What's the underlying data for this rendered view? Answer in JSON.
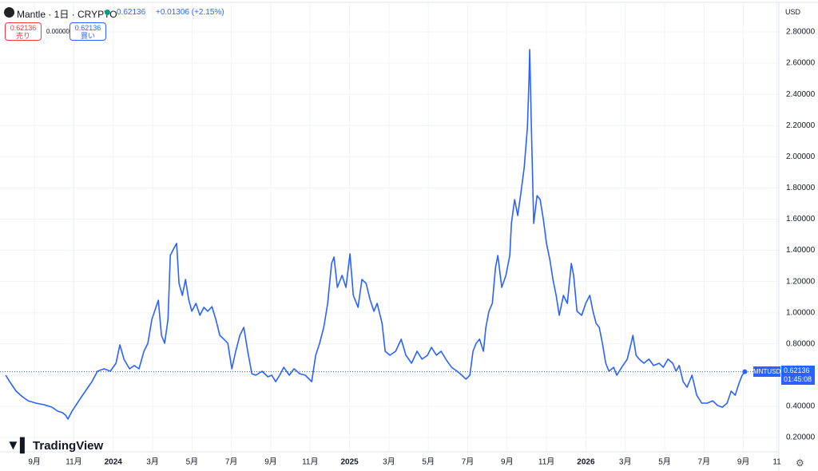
{
  "chart_data": {
    "type": "line",
    "title": "Mantle · 1日 · CRYPTO",
    "header_price": "0.62136",
    "change": "+0.01306 (+2.15%)",
    "sell_price": "0.62136",
    "sell_label": "売り",
    "spread": "0.00000",
    "buy_price": "0.62136",
    "buy_label": "買い",
    "currency": "USD",
    "watermark": "TradingView",
    "ticker": "MNTUSD",
    "last_price": "0.62136",
    "countdown": "01:45:08",
    "x": [
      -1.46,
      -1.26,
      -0.93,
      -0.61,
      -0.32,
      0.08,
      0.49,
      0.89,
      1.18,
      1.42,
      1.58,
      1.7,
      1.91,
      2.31,
      2.64,
      2.92,
      3.2,
      3.53,
      3.85,
      4.14,
      4.34,
      4.54,
      4.83,
      5.07,
      5.31,
      5.56,
      5.76,
      5.96,
      6.17,
      6.29,
      6.45,
      6.61,
      6.78,
      6.9,
      7.1,
      7.22,
      7.34,
      7.51,
      7.67,
      7.83,
      7.99,
      8.2,
      8.4,
      8.6,
      8.8,
      9.01,
      9.21,
      9.41,
      9.62,
      9.82,
      10.02,
      10.22,
      10.43,
      10.63,
      10.83,
      11.04,
      11.24,
      11.56,
      11.85,
      12.05,
      12.25,
      12.45,
      12.66,
      12.94,
      13.18,
      13.47,
      13.75,
      14.08,
      14.28,
      14.48,
      14.69,
      14.89,
      15.09,
      15.21,
      15.38,
      15.62,
      15.82,
      16.02,
      16.19,
      16.43,
      16.63,
      16.84,
      17.04,
      17.24,
      17.4,
      17.65,
      17.81,
      18.05,
      18.34,
      18.62,
      18.86,
      19.15,
      19.43,
      19.68,
      19.96,
      20.16,
      20.41,
      20.65,
      20.89,
      21.18,
      21.46,
      21.7,
      21.91,
      22.11,
      22.27,
      22.43,
      22.6,
      22.8,
      22.92,
      23.08,
      23.25,
      23.41,
      23.53,
      23.73,
      23.94,
      24.14,
      24.22,
      24.38,
      24.54,
      24.71,
      24.87,
      25.03,
      25.11,
      25.15,
      25.23,
      25.35,
      25.52,
      25.68,
      25.84,
      26.0,
      26.17,
      26.33,
      26.49,
      26.65,
      26.86,
      27.06,
      27.26,
      27.38,
      27.55,
      27.79,
      27.99,
      28.2,
      28.36,
      28.52,
      28.68,
      28.84,
      29.01,
      29.17,
      29.41,
      29.57,
      29.82,
      30.1,
      30.3,
      30.39,
      30.55,
      30.71,
      30.95,
      31.2,
      31.44,
      31.72,
      31.93,
      32.17,
      32.41,
      32.58,
      32.74,
      32.94,
      33.14,
      33.39,
      33.63,
      33.88,
      34.16,
      34.44,
      34.69,
      34.93,
      35.17,
      35.38,
      35.58,
      35.78,
      35.94,
      36.07
    ],
    "series": [
      {
        "name": "MNTUSD",
        "color": "#2962ff",
        "values": [
          0.599,
          0.558,
          0.497,
          0.461,
          0.435,
          0.42,
          0.41,
          0.394,
          0.369,
          0.359,
          0.343,
          0.318,
          0.369,
          0.446,
          0.507,
          0.558,
          0.625,
          0.64,
          0.625,
          0.676,
          0.794,
          0.702,
          0.64,
          0.661,
          0.64,
          0.753,
          0.804,
          0.957,
          1.034,
          1.08,
          0.855,
          0.804,
          0.957,
          1.367,
          1.418,
          1.444,
          1.188,
          1.111,
          1.213,
          1.085,
          1.009,
          1.06,
          0.983,
          1.034,
          1.009,
          1.039,
          0.957,
          0.855,
          0.83,
          0.804,
          0.64,
          0.753,
          0.855,
          0.906,
          0.753,
          0.609,
          0.599,
          0.625,
          0.589,
          0.599,
          0.558,
          0.599,
          0.65,
          0.599,
          0.64,
          0.609,
          0.599,
          0.558,
          0.727,
          0.804,
          0.906,
          1.06,
          1.316,
          1.357,
          1.162,
          1.239,
          1.162,
          1.377,
          1.111,
          1.034,
          1.213,
          1.188,
          1.085,
          1.009,
          1.06,
          0.932,
          0.753,
          0.727,
          0.753,
          0.83,
          0.727,
          0.676,
          0.753,
          0.702,
          0.727,
          0.778,
          0.727,
          0.753,
          0.702,
          0.65,
          0.625,
          0.599,
          0.574,
          0.599,
          0.753,
          0.804,
          0.83,
          0.753,
          0.906,
          1.009,
          1.06,
          1.29,
          1.367,
          1.162,
          1.239,
          1.367,
          1.572,
          1.725,
          1.623,
          1.776,
          1.93,
          2.186,
          2.493,
          2.687,
          2.211,
          1.572,
          1.751,
          1.725,
          1.597,
          1.444,
          1.341,
          1.213,
          1.111,
          0.983,
          1.111,
          1.06,
          1.316,
          1.239,
          1.009,
          0.983,
          1.06,
          1.111,
          1.009,
          0.932,
          0.906,
          0.804,
          0.676,
          0.625,
          0.65,
          0.599,
          0.65,
          0.702,
          0.804,
          0.855,
          0.727,
          0.702,
          0.676,
          0.702,
          0.661,
          0.676,
          0.65,
          0.702,
          0.676,
          0.625,
          0.661,
          0.558,
          0.522,
          0.599,
          0.471,
          0.42,
          0.42,
          0.435,
          0.405,
          0.394,
          0.42,
          0.497,
          0.471,
          0.548,
          0.599,
          0.62136
        ]
      }
    ],
    "xlim": [
      -1.75,
      37.8
    ],
    "ylim": [
      0.1,
      2.9
    ],
    "xticks": [
      {
        "value": 0,
        "label": "9月"
      },
      {
        "value": 2,
        "label": "11月"
      },
      {
        "value": 4,
        "label": "2024"
      },
      {
        "value": 6,
        "label": "3月"
      },
      {
        "value": 8,
        "label": "5月"
      },
      {
        "value": 10,
        "label": "7月"
      },
      {
        "value": 12,
        "label": "9月"
      },
      {
        "value": 14,
        "label": "11月"
      },
      {
        "value": 16,
        "label": "2025"
      },
      {
        "value": 18,
        "label": "3月"
      },
      {
        "value": 20,
        "label": "5月"
      },
      {
        "value": 22,
        "label": "7月"
      },
      {
        "value": 24,
        "label": "9月"
      },
      {
        "value": 26,
        "label": "11月"
      },
      {
        "value": 28,
        "label": "2026"
      },
      {
        "value": 30,
        "label": "3月"
      },
      {
        "value": 32,
        "label": "5月"
      },
      {
        "value": 34,
        "label": "7月"
      },
      {
        "value": 36,
        "label": "9月"
      },
      {
        "value": 37.7,
        "label": "11"
      }
    ],
    "yticks": [
      {
        "value": 0.2,
        "label": "0.20000"
      },
      {
        "value": 0.4,
        "label": "0.40000"
      },
      {
        "value": 0.6,
        "label": "0.60000"
      },
      {
        "value": 0.8,
        "label": "0.80000"
      },
      {
        "value": 1.0,
        "label": "1.00000"
      },
      {
        "value": 1.2,
        "label": "1.20000"
      },
      {
        "value": 1.4,
        "label": "1.40000"
      },
      {
        "value": 1.6,
        "label": "1.60000"
      },
      {
        "value": 1.8,
        "label": "1.80000"
      },
      {
        "value": 2.0,
        "label": "2.00000"
      },
      {
        "value": 2.2,
        "label": "2.20000"
      },
      {
        "value": 2.4,
        "label": "2.40000"
      },
      {
        "value": 2.6,
        "label": "2.60000"
      },
      {
        "value": 2.8,
        "label": "2.80000"
      }
    ],
    "grid": true
  }
}
